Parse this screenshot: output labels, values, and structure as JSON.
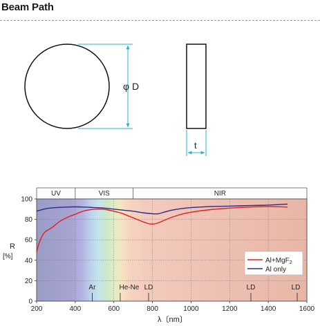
{
  "header": {
    "title": "Beam Path"
  },
  "mirror": {
    "diameter_label": "φ D",
    "thickness_label": "t",
    "color": "#1fb8c8"
  },
  "chart_data": {
    "type": "line",
    "ylabel": "R",
    "yunit": "[%]",
    "xlabel": "λ〔nm〕",
    "xlim": [
      200,
      1600
    ],
    "ylim": [
      0,
      100
    ],
    "x_ticks": [
      200,
      400,
      600,
      800,
      1000,
      1200,
      1400,
      1600
    ],
    "y_ticks": [
      0,
      20,
      40,
      60,
      80,
      100
    ],
    "regions": [
      {
        "label": "UV",
        "from": 200,
        "to": 400
      },
      {
        "label": "VIS",
        "from": 400,
        "to": 700
      },
      {
        "label": "NIR",
        "from": 700,
        "to": 1600
      }
    ],
    "laser_lines": [
      {
        "label": "Ar",
        "x": 488
      },
      {
        "label": "He-Ne",
        "x": 633
      },
      {
        "label": "LD",
        "x": 780
      },
      {
        "label": "LD",
        "x": 1310
      },
      {
        "label": "LD",
        "x": 1550
      }
    ],
    "series": [
      {
        "name": "Al+MgF2",
        "color": "#e02020",
        "points": [
          [
            200,
            48
          ],
          [
            215,
            58
          ],
          [
            240,
            67
          ],
          [
            280,
            72
          ],
          [
            320,
            78
          ],
          [
            360,
            82
          ],
          [
            400,
            85
          ],
          [
            440,
            88
          ],
          [
            480,
            89.5
          ],
          [
            520,
            90
          ],
          [
            560,
            89.5
          ],
          [
            600,
            88
          ],
          [
            640,
            86
          ],
          [
            680,
            83
          ],
          [
            720,
            80
          ],
          [
            760,
            77
          ],
          [
            790,
            75.5
          ],
          [
            820,
            76
          ],
          [
            860,
            79
          ],
          [
            900,
            82
          ],
          [
            950,
            85
          ],
          [
            1000,
            87
          ],
          [
            1100,
            89.5
          ],
          [
            1200,
            91
          ],
          [
            1300,
            92
          ],
          [
            1400,
            92.5
          ],
          [
            1500,
            92
          ]
        ]
      },
      {
        "name": "Al only",
        "color": "#2a2a8a",
        "points": [
          [
            200,
            88
          ],
          [
            250,
            90.5
          ],
          [
            300,
            91.5
          ],
          [
            350,
            92
          ],
          [
            400,
            92.2
          ],
          [
            450,
            92
          ],
          [
            500,
            91.5
          ],
          [
            550,
            91
          ],
          [
            600,
            90
          ],
          [
            650,
            89
          ],
          [
            700,
            88
          ],
          [
            750,
            86.5
          ],
          [
            800,
            85.5
          ],
          [
            830,
            85.5
          ],
          [
            860,
            87
          ],
          [
            900,
            89
          ],
          [
            950,
            90.5
          ],
          [
            1000,
            91.5
          ],
          [
            1100,
            92.5
          ],
          [
            1200,
            93
          ],
          [
            1300,
            93.5
          ],
          [
            1400,
            94
          ],
          [
            1500,
            95
          ]
        ]
      }
    ]
  }
}
